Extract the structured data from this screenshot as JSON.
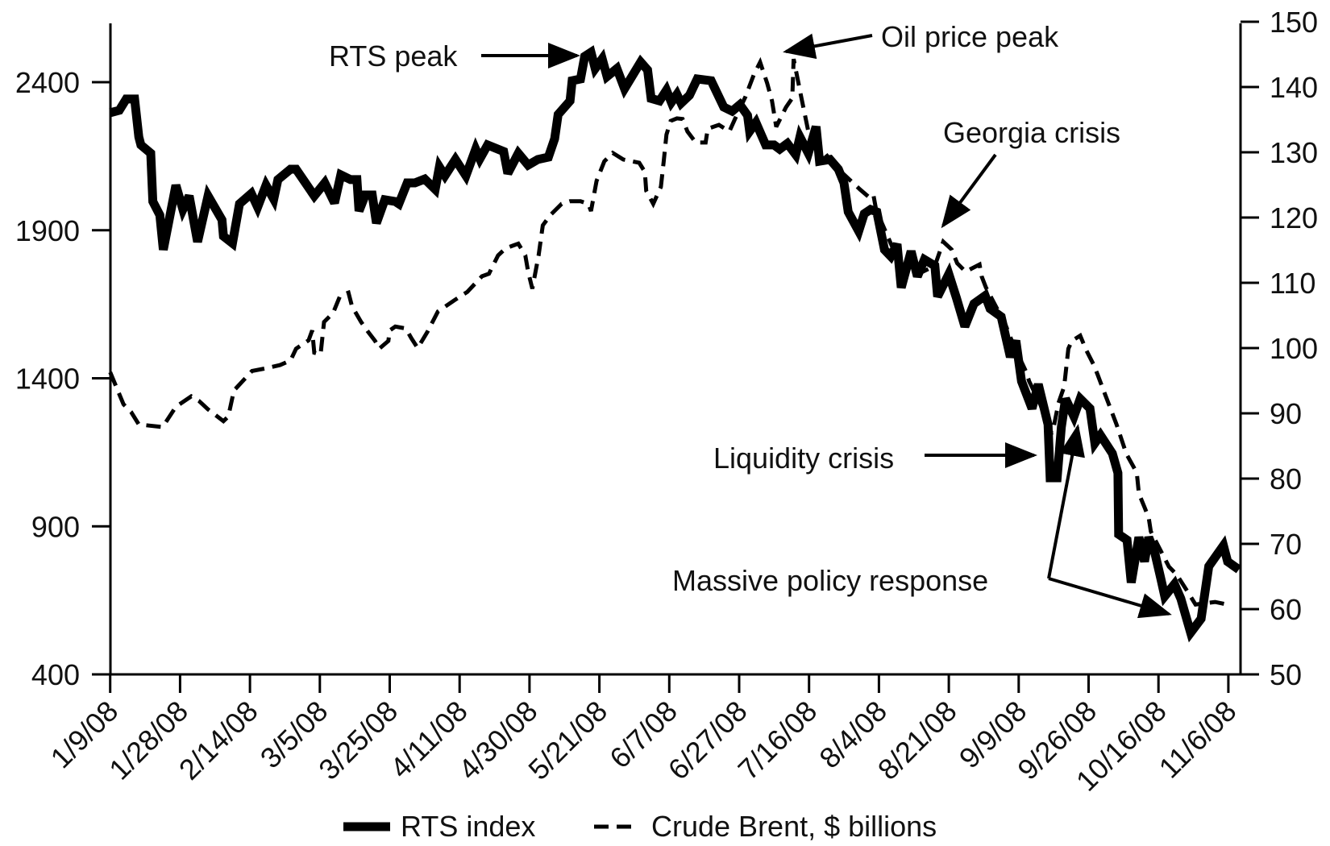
{
  "chart_data": {
    "type": "line",
    "title": "",
    "xlabel": "",
    "ylabel_left": "",
    "ylabel_right": "",
    "grid": false,
    "legend_position": "bottom-center",
    "x_ticks": [
      "1/9/08",
      "1/28/08",
      "2/14/08",
      "3/5/08",
      "3/25/08",
      "4/11/08",
      "4/30/08",
      "5/21/08",
      "6/7/08",
      "6/27/08",
      "7/16/08",
      "8/4/08",
      "8/21/08",
      "9/9/08",
      "9/26/08",
      "10/16/08",
      "11/6/08"
    ],
    "x_note": "x values are positions in tick-index units (0 = 1/9/08, 16 = 11/6/08)",
    "x_range": [
      0,
      16.2
    ],
    "y_left": {
      "range": [
        400,
        2500
      ],
      "ticks": [
        400,
        900,
        1400,
        1900,
        2400
      ],
      "tick_labels": [
        "400",
        "900",
        "1400",
        "1900",
        "2400"
      ]
    },
    "y_right": {
      "range": [
        50,
        150
      ],
      "ticks": [
        50,
        60,
        70,
        80,
        90,
        100,
        110,
        120,
        130,
        140,
        150
      ],
      "tick_labels": [
        "50",
        "60",
        "70",
        "80",
        "90",
        "100",
        "110",
        "120",
        "130",
        "140",
        "150"
      ]
    },
    "series": [
      {
        "name": "RTS index",
        "axis": "left",
        "style": "solid-thick",
        "x": [
          0.0,
          0.13,
          0.23,
          0.35,
          0.41,
          0.44,
          0.58,
          0.61,
          0.71,
          0.76,
          0.94,
          1.04,
          1.13,
          1.25,
          1.4,
          1.6,
          1.62,
          1.75,
          1.85,
          2.02,
          2.11,
          2.23,
          2.34,
          2.4,
          2.58,
          2.66,
          2.92,
          3.07,
          3.21,
          3.3,
          3.44,
          3.53,
          3.56,
          3.65,
          3.75,
          3.81,
          3.93,
          4.08,
          4.13,
          4.25,
          4.36,
          4.5,
          4.65,
          4.71,
          4.79,
          4.94,
          5.09,
          5.23,
          5.29,
          5.4,
          5.63,
          5.69,
          5.84,
          5.98,
          6.12,
          6.27,
          6.36,
          6.41,
          6.58,
          6.61,
          6.73,
          6.79,
          6.88,
          6.94,
          7.04,
          7.11,
          7.25,
          7.36,
          7.59,
          7.69,
          7.74,
          7.86,
          7.96,
          8.03,
          8.11,
          8.17,
          8.29,
          8.4,
          8.6,
          8.78,
          8.9,
          9.01,
          9.12,
          9.15,
          9.24,
          9.38,
          9.5,
          9.58,
          9.69,
          9.81,
          9.87,
          9.99,
          10.1,
          10.15,
          10.3,
          10.42,
          10.5,
          10.56,
          10.71,
          10.79,
          10.88,
          10.97,
          11.08,
          11.17,
          11.26,
          11.32,
          11.46,
          11.55,
          11.65,
          11.8,
          11.84,
          12.0,
          12.11,
          12.23,
          12.36,
          12.52,
          12.59,
          12.75,
          12.88,
          12.96,
          13.04,
          13.19,
          13.28,
          13.42,
          13.45,
          13.55,
          13.61,
          13.67,
          13.79,
          13.88,
          14.02,
          14.09,
          14.17,
          14.34,
          14.42,
          14.43,
          14.55,
          14.61,
          14.72,
          14.8,
          14.86,
          14.95,
          15.03,
          15.09,
          15.23,
          15.32,
          15.46,
          15.61,
          15.72,
          15.93,
          15.99,
          16.15
        ],
        "values": [
          2297,
          2305,
          2343,
          2343,
          2215,
          2188,
          2160,
          1997,
          1951,
          1834,
          2052,
          1970,
          2016,
          1861,
          2016,
          1935,
          1880,
          1856,
          1989,
          2024,
          1978,
          2052,
          2005,
          2071,
          2106,
          2106,
          2016,
          2060,
          1992,
          2087,
          2071,
          2071,
          1965,
          2019,
          2019,
          1924,
          2003,
          1997,
          1989,
          2060,
          2060,
          2073,
          2038,
          2114,
          2084,
          2139,
          2084,
          2174,
          2141,
          2188,
          2166,
          2092,
          2160,
          2120,
          2139,
          2147,
          2209,
          2291,
          2337,
          2405,
          2411,
          2487,
          2501,
          2446,
          2479,
          2419,
          2446,
          2378,
          2468,
          2441,
          2345,
          2337,
          2373,
          2332,
          2359,
          2329,
          2356,
          2411,
          2405,
          2316,
          2302,
          2324,
          2288,
          2234,
          2264,
          2188,
          2188,
          2174,
          2193,
          2155,
          2215,
          2160,
          2250,
          2133,
          2139,
          2106,
          2060,
          1962,
          1897,
          1956,
          1970,
          1962,
          1834,
          1812,
          1853,
          1706,
          1829,
          1744,
          1801,
          1780,
          1676,
          1752,
          1671,
          1575,
          1652,
          1679,
          1635,
          1608,
          1472,
          1527,
          1390,
          1298,
          1380,
          1244,
          1064,
          1064,
          1235,
          1331,
          1271,
          1331,
          1298,
          1181,
          1208,
          1146,
          1080,
          873,
          854,
          710,
          863,
          781,
          863,
          808,
          727,
          664,
          705,
          656,
          541,
          588,
          765,
          835,
          781,
          754
        ]
      },
      {
        "name": "Crude Brent, $ billions",
        "axis": "right",
        "style": "dashed",
        "x": [
          0.0,
          0.19,
          0.3,
          0.41,
          0.75,
          0.94,
          1.16,
          1.27,
          1.4,
          1.62,
          1.69,
          1.77,
          2.03,
          2.23,
          2.43,
          2.58,
          2.66,
          2.84,
          2.89,
          2.92,
          3.01,
          3.06,
          3.19,
          3.29,
          3.41,
          3.46,
          3.59,
          3.69,
          3.79,
          3.85,
          3.98,
          4.0,
          4.08,
          4.23,
          4.31,
          4.4,
          4.54,
          4.69,
          4.92,
          5.11,
          5.32,
          5.42,
          5.55,
          5.66,
          5.84,
          5.94,
          5.98,
          6.04,
          6.13,
          6.19,
          6.3,
          6.46,
          6.58,
          6.73,
          6.84,
          6.88,
          6.96,
          7.07,
          7.19,
          7.34,
          7.57,
          7.65,
          7.67,
          7.77,
          7.88,
          7.92,
          7.96,
          8.02,
          8.11,
          8.19,
          8.26,
          8.38,
          8.52,
          8.55,
          8.71,
          8.86,
          8.94,
          9.09,
          9.21,
          9.3,
          9.4,
          9.47,
          9.53,
          9.67,
          9.76,
          9.78,
          9.88,
          9.99,
          10.07,
          10.38,
          10.73,
          10.86,
          10.92,
          10.96,
          11.11,
          11.26,
          11.4,
          11.57,
          11.8,
          11.92,
          12.04,
          12.12,
          12.24,
          12.44,
          12.47,
          12.53,
          12.81,
          12.92,
          13.1,
          13.15,
          13.3,
          13.47,
          13.5,
          13.57,
          13.65,
          13.71,
          13.76,
          13.88,
          13.97,
          14.07,
          14.13,
          14.25,
          14.4,
          14.54,
          14.69,
          14.72,
          14.8,
          14.86,
          14.89,
          15.15,
          15.26,
          15.41,
          15.53,
          15.81,
          15.98
        ],
        "values": [
          96.3,
          91.4,
          90.2,
          88.3,
          87.9,
          91.0,
          92.6,
          91.9,
          90.6,
          88.8,
          89.5,
          93.5,
          96.5,
          96.9,
          97.4,
          98.1,
          99.9,
          101.2,
          102.7,
          99.3,
          99.0,
          104.0,
          105.4,
          108.0,
          108.5,
          106.4,
          104.0,
          102.5,
          101.1,
          99.9,
          101.1,
          102.7,
          103.3,
          103.0,
          101.5,
          100.0,
          102.5,
          105.6,
          107.3,
          108.6,
          111.0,
          111.4,
          114.2,
          115.3,
          116.0,
          114.2,
          111.7,
          109.1,
          114.2,
          118.8,
          120.4,
          122.1,
          122.5,
          122.5,
          122.1,
          121.0,
          125.6,
          128.6,
          129.9,
          128.9,
          128.4,
          127.0,
          124.1,
          122.1,
          124.7,
          128.6,
          132.7,
          134.8,
          135.2,
          135.1,
          133.2,
          131.5,
          131.5,
          133.6,
          134.2,
          133.2,
          135.1,
          138.5,
          141.9,
          143.8,
          140.6,
          137.9,
          133.9,
          136.9,
          138.3,
          144.3,
          138.9,
          133.2,
          132.0,
          127.8,
          124.3,
          123.1,
          123.5,
          121.2,
          117.5,
          113.8,
          112.0,
          111.4,
          112.6,
          116.3,
          115.1,
          113.0,
          111.7,
          112.8,
          111.0,
          109.3,
          103.6,
          100.6,
          96.5,
          94.9,
          91.6,
          87.0,
          87.9,
          91.6,
          94.1,
          99.9,
          101.1,
          101.9,
          99.6,
          97.5,
          95.9,
          92.5,
          88.3,
          83.8,
          80.9,
          77.7,
          75.6,
          74.0,
          71.9,
          66.5,
          65.3,
          62.8,
          60.7,
          61.1,
          60.7
        ]
      }
    ],
    "annotations": [
      {
        "text": "RTS peak",
        "points_to": {
          "x": 6.88,
          "axis": "left",
          "y": 2501
        }
      },
      {
        "text": "Oil price peak",
        "points_to": {
          "x": 9.55,
          "axis": "right",
          "y": 146
        }
      },
      {
        "text": "Georgia crisis",
        "points_to": {
          "x": 11.85,
          "axis": "left",
          "y": 1870
        }
      },
      {
        "text": "Liquidity crisis",
        "points_to": {
          "x": 13.43,
          "axis": "left",
          "y": 1150
        }
      },
      {
        "text": "Massive policy response",
        "points_to": [
          {
            "x": 13.88,
            "axis": "left",
            "y": 1300
          },
          {
            "x": 15.17,
            "axis": "left",
            "y": 600
          }
        ]
      }
    ]
  },
  "legend": [
    {
      "label": "RTS index",
      "style": "solid-thick"
    },
    {
      "label": "Crude Brent, $ billions",
      "style": "dashed"
    }
  ],
  "colors": {
    "line": "#000000",
    "background": "#ffffff",
    "text": "#111111"
  }
}
